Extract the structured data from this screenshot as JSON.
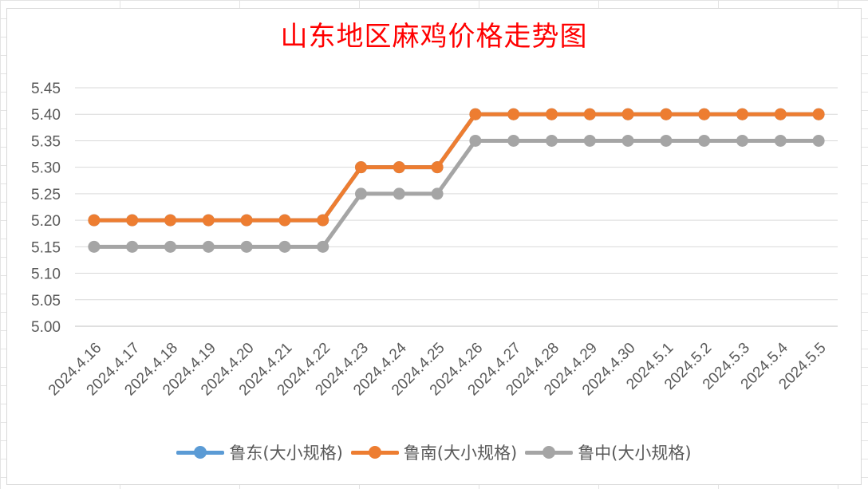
{
  "chart_data": {
    "type": "line",
    "title": "山东地区麻鸡价格走势图",
    "categories": [
      "2024.4.16",
      "2024.4.17",
      "2024.4.18",
      "2024.4.19",
      "2024.4.20",
      "2024.4.21",
      "2024.4.22",
      "2024.4.23",
      "2024.4.24",
      "2024.4.25",
      "2024.4.26",
      "2024.4.27",
      "2024.4.28",
      "2024.4.29",
      "2024.4.30",
      "2024.5.1",
      "2024.5.2",
      "2024.5.3",
      "2024.5.4",
      "2024.5.5"
    ],
    "ylim": [
      5.0,
      5.45
    ],
    "yticks": [
      "5.00",
      "5.05",
      "5.10",
      "5.15",
      "5.20",
      "5.25",
      "5.30",
      "5.35",
      "5.40",
      "5.45"
    ],
    "grid": true,
    "legend_position": "bottom",
    "series": [
      {
        "name": "鲁东(大小规格)",
        "color": "#5b9bd5",
        "values": [
          5.2,
          5.2,
          5.2,
          5.2,
          5.2,
          5.2,
          5.2,
          5.3,
          5.3,
          5.3,
          5.4,
          5.4,
          5.4,
          5.4,
          5.4,
          5.4,
          5.4,
          5.4,
          5.4,
          5.4
        ]
      },
      {
        "name": "鲁南(大小规格)",
        "color": "#ed7d31",
        "values": [
          5.2,
          5.2,
          5.2,
          5.2,
          5.2,
          5.2,
          5.2,
          5.3,
          5.3,
          5.3,
          5.4,
          5.4,
          5.4,
          5.4,
          5.4,
          5.4,
          5.4,
          5.4,
          5.4,
          5.4
        ]
      },
      {
        "name": "鲁中(大小规格)",
        "color": "#a5a5a5",
        "values": [
          5.15,
          5.15,
          5.15,
          5.15,
          5.15,
          5.15,
          5.15,
          5.25,
          5.25,
          5.25,
          5.35,
          5.35,
          5.35,
          5.35,
          5.35,
          5.35,
          5.35,
          5.35,
          5.35,
          5.35
        ]
      }
    ]
  }
}
